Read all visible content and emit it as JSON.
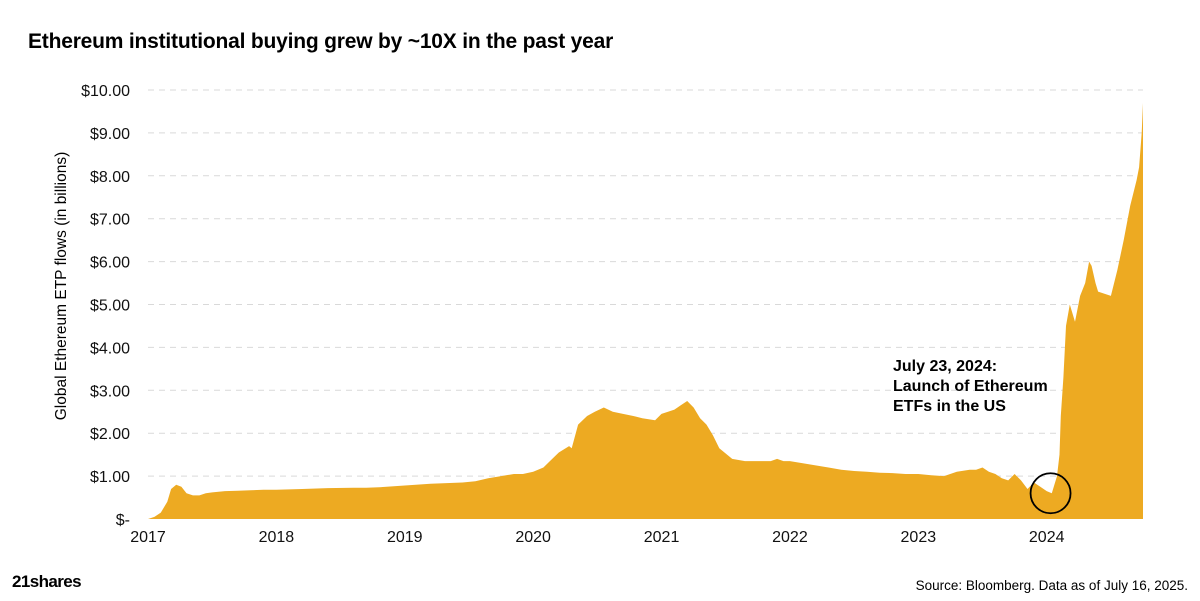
{
  "chart_data": {
    "type": "area",
    "title": "Ethereum institutional buying grew by ~10X in the past year",
    "ylabel": "Global Ethereum ETP flows (in billions)",
    "xlabel": "",
    "x_ticks": [
      "2017",
      "2018",
      "2019",
      "2020",
      "2021",
      "2022",
      "2023",
      "2024"
    ],
    "y_ticks": [
      "$-",
      "$1.00",
      "$2.00",
      "$3.00",
      "$4.00",
      "$5.00",
      "$6.00",
      "$7.00",
      "$8.00",
      "$9.00",
      "$10.00"
    ],
    "ylim": [
      0,
      10
    ],
    "xlim": [
      2017.0,
      2024.75
    ],
    "grid": "horizontal dashed",
    "series": [
      {
        "color": "#EDAA22",
        "x": [
          2017.0,
          2017.05,
          2017.1,
          2017.15,
          2017.18,
          2017.22,
          2017.26,
          2017.3,
          2017.35,
          2017.4,
          2017.45,
          2017.5,
          2017.6,
          2017.7,
          2017.8,
          2017.9,
          2018.0,
          2018.2,
          2018.4,
          2018.6,
          2018.7,
          2018.8,
          2019.0,
          2019.2,
          2019.35,
          2019.45,
          2019.55,
          2019.65,
          2019.75,
          2019.85,
          2019.92,
          2020.0,
          2020.08,
          2020.13,
          2020.2,
          2020.28,
          2020.3,
          2020.35,
          2020.42,
          2020.48,
          2020.55,
          2020.62,
          2020.7,
          2020.78,
          2020.85,
          2020.95,
          2021.0,
          2021.05,
          2021.1,
          2021.15,
          2021.2,
          2021.25,
          2021.3,
          2021.35,
          2021.4,
          2021.45,
          2021.55,
          2021.65,
          2021.75,
          2021.85,
          2021.9,
          2021.95,
          2022.0,
          2022.1,
          2022.2,
          2022.3,
          2022.4,
          2022.5,
          2022.6,
          2022.7,
          2022.8,
          2022.9,
          2023.0,
          2023.1,
          2023.2,
          2023.3,
          2023.4,
          2023.45,
          2023.5,
          2023.55,
          2023.6,
          2023.65,
          2023.7,
          2023.75,
          2023.8,
          2023.85,
          2023.9,
          2023.95,
          2024.0,
          2024.04,
          2024.08,
          2024.1,
          2024.11,
          2024.13,
          2024.15,
          2024.18,
          2024.22,
          2024.26,
          2024.3,
          2024.33,
          2024.35,
          2024.38,
          2024.4,
          2024.45,
          2024.5,
          2024.55,
          2024.6,
          2024.65,
          2024.7,
          2024.72,
          2024.74,
          2024.75
        ],
        "values": [
          0.0,
          0.05,
          0.15,
          0.4,
          0.7,
          0.8,
          0.75,
          0.6,
          0.55,
          0.55,
          0.6,
          0.62,
          0.65,
          0.66,
          0.67,
          0.68,
          0.68,
          0.7,
          0.72,
          0.73,
          0.73,
          0.74,
          0.78,
          0.82,
          0.84,
          0.85,
          0.88,
          0.95,
          1.0,
          1.05,
          1.05,
          1.1,
          1.2,
          1.35,
          1.55,
          1.7,
          1.65,
          2.2,
          2.4,
          2.5,
          2.6,
          2.5,
          2.45,
          2.4,
          2.35,
          2.3,
          2.45,
          2.5,
          2.55,
          2.65,
          2.75,
          2.6,
          2.35,
          2.2,
          1.95,
          1.65,
          1.4,
          1.35,
          1.35,
          1.35,
          1.4,
          1.35,
          1.35,
          1.3,
          1.25,
          1.2,
          1.15,
          1.12,
          1.1,
          1.08,
          1.07,
          1.05,
          1.05,
          1.02,
          1.0,
          1.1,
          1.15,
          1.15,
          1.2,
          1.1,
          1.05,
          0.95,
          0.9,
          1.05,
          0.9,
          0.7,
          0.85,
          0.75,
          0.65,
          0.6,
          1.0,
          1.5,
          2.4,
          3.3,
          4.5,
          5.0,
          4.6,
          5.2,
          5.5,
          6.0,
          5.9,
          5.5,
          5.3,
          5.25,
          5.2,
          5.8,
          6.5,
          7.3,
          7.9,
          8.2,
          9.0,
          9.7
        ]
      }
    ],
    "annotation": {
      "lines": [
        "July 23, 2024:",
        "Launch of Ethereum",
        "ETFs in the US"
      ],
      "x": 2024.03,
      "y": 0.6
    }
  },
  "footer": {
    "logo": "21shares",
    "source": "Source: Bloomberg. Data as of July 16, 2025."
  }
}
